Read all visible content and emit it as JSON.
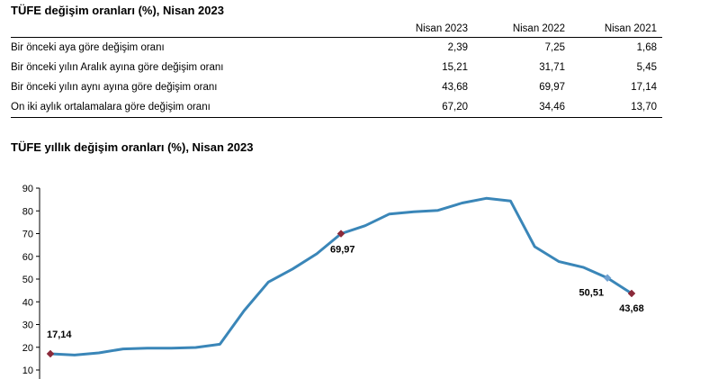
{
  "table": {
    "title": "TÜFE değişim oranları (%), Nisan 2023",
    "columns": [
      "Nisan 2023",
      "Nisan 2022",
      "Nisan 2021"
    ],
    "rows": [
      {
        "label": "Bir önceki aya göre değişim oranı",
        "values": [
          "2,39",
          "7,25",
          "1,68"
        ]
      },
      {
        "label": "Bir önceki yılın Aralık ayına göre değişim oranı",
        "values": [
          "15,21",
          "31,71",
          "5,45"
        ]
      },
      {
        "label": "Bir önceki yılın aynı ayına göre değişim oranı",
        "values": [
          "43,68",
          "69,97",
          "17,14"
        ]
      },
      {
        "label": "On iki aylık ortalamalara göre değişim oranı",
        "values": [
          "67,20",
          "34,46",
          "13,70"
        ]
      }
    ]
  },
  "chart_data": {
    "type": "line",
    "title": "TÜFE yıllık değişim oranları (%), Nisan 2023",
    "ylim": [
      10,
      90
    ],
    "yticks": [
      10,
      20,
      30,
      40,
      50,
      60,
      70,
      80,
      90
    ],
    "grid": false,
    "line_color": "#3a86b8",
    "marker_color": "#8b2a3a",
    "marker_color_alt": "#6fa0d0",
    "series": [
      {
        "values": [
          17.14,
          16.59,
          17.53,
          19.25,
          19.58,
          19.58,
          19.89,
          21.31,
          36.08,
          48.69,
          54.44,
          61.14,
          69.97,
          73.5,
          78.62,
          79.6,
          80.21,
          83.45,
          85.51,
          84.39,
          64.27,
          57.68,
          55.18,
          50.51,
          43.68
        ]
      }
    ],
    "annotations": [
      {
        "index": 0,
        "label": "17,14",
        "color": "#8b2a3a"
      },
      {
        "index": 12,
        "label": "69,97",
        "color": "#8b2a3a"
      },
      {
        "index": 23,
        "label": "50,51",
        "color": "#6fa0d0"
      },
      {
        "index": 24,
        "label": "43,68",
        "color": "#8b2a3a"
      }
    ]
  }
}
